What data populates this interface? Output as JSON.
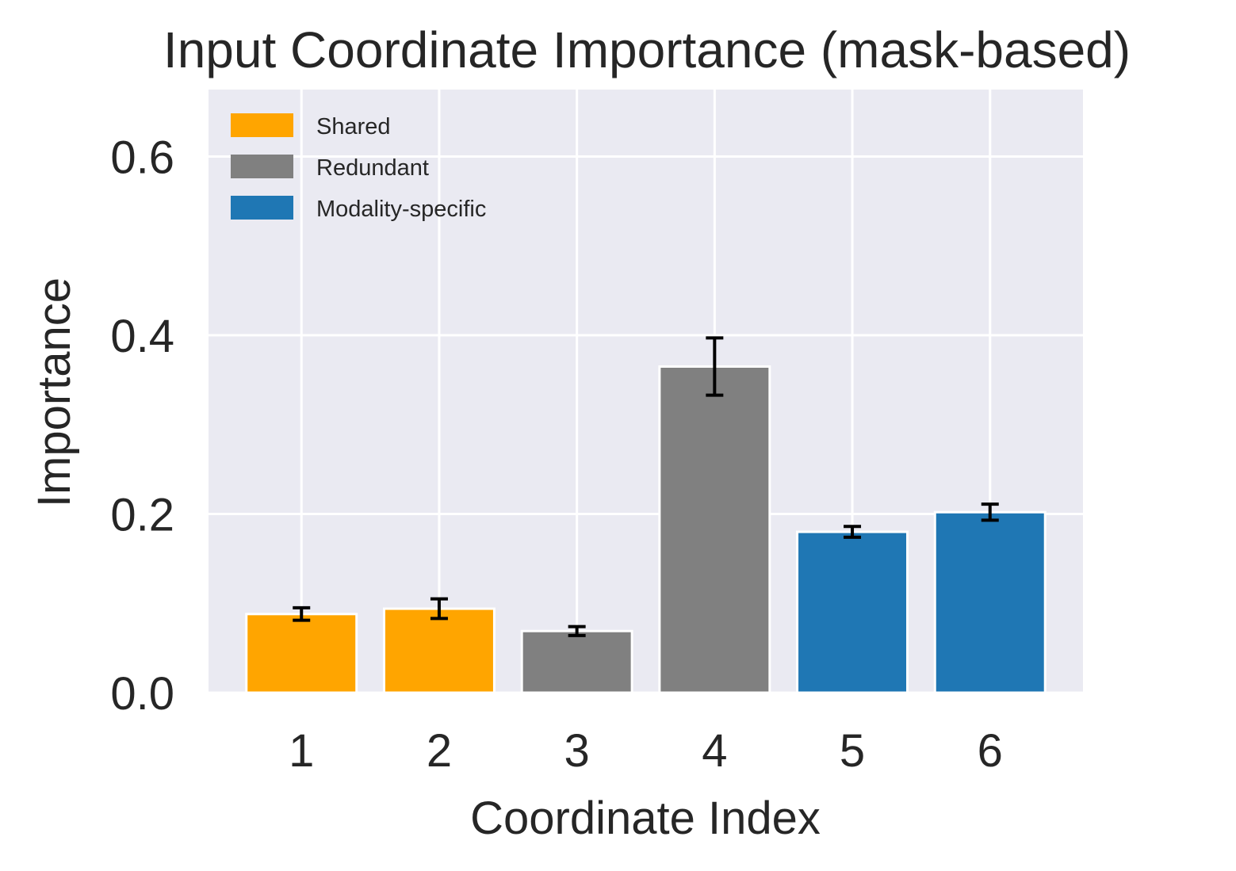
{
  "chart_data": {
    "type": "bar",
    "title": "Input Coordinate Importance (mask-based)",
    "xlabel": "Coordinate Index",
    "ylabel": "Importance",
    "categories": [
      "1",
      "2",
      "3",
      "4",
      "5",
      "6"
    ],
    "values": [
      0.088,
      0.094,
      0.069,
      0.365,
      0.18,
      0.202
    ],
    "errors": [
      0.007,
      0.011,
      0.005,
      0.032,
      0.006,
      0.009
    ],
    "groups": [
      "Shared",
      "Shared",
      "Redundant",
      "Redundant",
      "Modality-specific",
      "Modality-specific"
    ],
    "ylim": [
      0,
      0.675
    ],
    "yticks": [
      {
        "value": 0.0,
        "label": "0.0"
      },
      {
        "value": 0.2,
        "label": "0.2"
      },
      {
        "value": 0.4,
        "label": "0.4"
      },
      {
        "value": 0.6,
        "label": "0.6"
      }
    ],
    "grid": true,
    "legend": {
      "placement": "upper-left",
      "entries": [
        {
          "label": "Shared",
          "color": "#ffa500"
        },
        {
          "label": "Redundant",
          "color": "#808080"
        },
        {
          "label": "Modality-specific",
          "color": "#1f77b4"
        }
      ]
    },
    "colors": {
      "Shared": "#ffa500",
      "Redundant": "#808080",
      "Modality-specific": "#1f77b4",
      "plot_background": "#eaeaf2",
      "grid": "#ffffff",
      "error_bar": "#000000"
    }
  }
}
